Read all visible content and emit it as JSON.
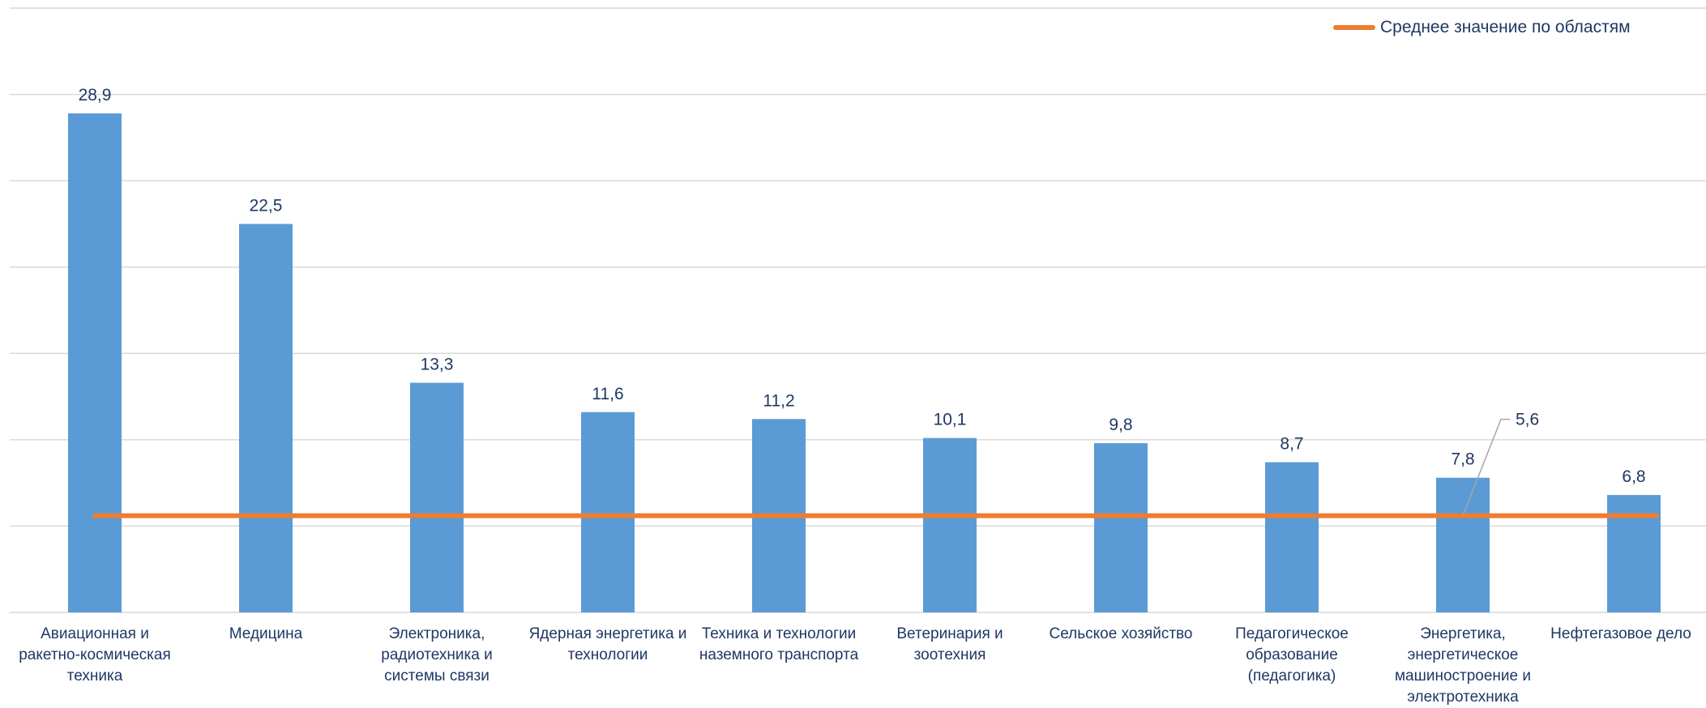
{
  "chart_data": {
    "type": "bar",
    "categories": [
      "Авиационная и ракетно-космическая техника",
      "Медицина",
      "Электроника, радиотехника и системы связи",
      "Ядерная энергетика и технологии",
      "Техника и технологии наземного транспорта",
      "Ветеринария и зоотехния",
      "Сельское хозяйство",
      "Педагогическое образование (педагогика)",
      "Энергетика, энергетическое машиностроение и электротехника",
      "Нефтегазовое дело"
    ],
    "values": [
      28.9,
      22.5,
      13.3,
      11.6,
      11.2,
      10.1,
      9.8,
      8.7,
      7.8,
      6.8
    ],
    "value_labels": [
      "28,9",
      "22,5",
      "13,3",
      "11,6",
      "11,2",
      "10,1",
      "9,8",
      "8,7",
      "7,8",
      "6,8"
    ],
    "average": {
      "name": "Среднее значение по областям",
      "value": 5.6,
      "label": "5,6",
      "type": "line"
    },
    "ylim": [
      0,
      35
    ],
    "grid": true,
    "legend_position": "top-right",
    "colors": {
      "bars": "#5B9BD5",
      "average_line": "#ED7D31",
      "text": "#1F3864",
      "grid": "#D9D9D9"
    }
  }
}
